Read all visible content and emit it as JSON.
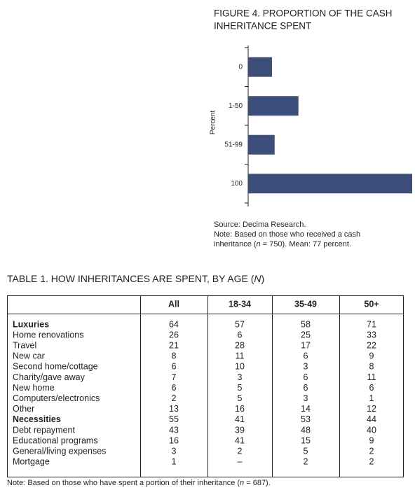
{
  "chart_data": {
    "type": "hbar",
    "title": [
      "FIGURE 4. PROPORTION OF THE CASH",
      "INHERITANCE SPENT"
    ],
    "y_label": "Percent",
    "categories": [
      "0",
      "1-50",
      "51-99",
      "100"
    ],
    "values": [
      9,
      19,
      10,
      62
    ],
    "color": "#3d4e7a",
    "xlim": [
      0,
      62
    ],
    "source": "Source: Decima Research.",
    "note": [
      "Note: Based on those who received a cash",
      "inheritance (",
      "n",
      " = 750). Mean: 77 percent."
    ]
  },
  "table": {
    "title": [
      "TABLE 1. HOW INHERITANCES ARE SPENT, BY AGE (",
      "N",
      ")"
    ],
    "columns": [
      "All",
      "18-34",
      "35-49",
      "50+"
    ],
    "rows": [
      [
        "Luxuries",
        64,
        57,
        58,
        71
      ],
      [
        "Home renovations",
        26,
        6,
        25,
        33
      ],
      [
        "Travel",
        21,
        28,
        17,
        22
      ],
      [
        "New car",
        8,
        11,
        6,
        9
      ],
      [
        "Second home/cottage",
        6,
        10,
        3,
        8
      ],
      [
        "Charity/gave away",
        7,
        3,
        6,
        11
      ],
      [
        "New home",
        6,
        5,
        6,
        6
      ],
      [
        "Computers/electronics",
        2,
        5,
        3,
        1
      ],
      [
        "Other",
        13,
        16,
        14,
        12
      ],
      [
        "Necessities",
        55,
        41,
        53,
        44
      ],
      [
        "Debt repayment",
        43,
        39,
        48,
        40
      ],
      [
        "Educational programs",
        16,
        41,
        15,
        9
      ],
      [
        "General/living expenses",
        3,
        2,
        5,
        2
      ],
      [
        "Mortgage",
        1,
        "–",
        2,
        2
      ]
    ],
    "bold_rows": [
      0,
      9
    ],
    "note": [
      "Note: Based on those who have spent a portion of their inheritance (",
      "n",
      " = 687)."
    ]
  }
}
